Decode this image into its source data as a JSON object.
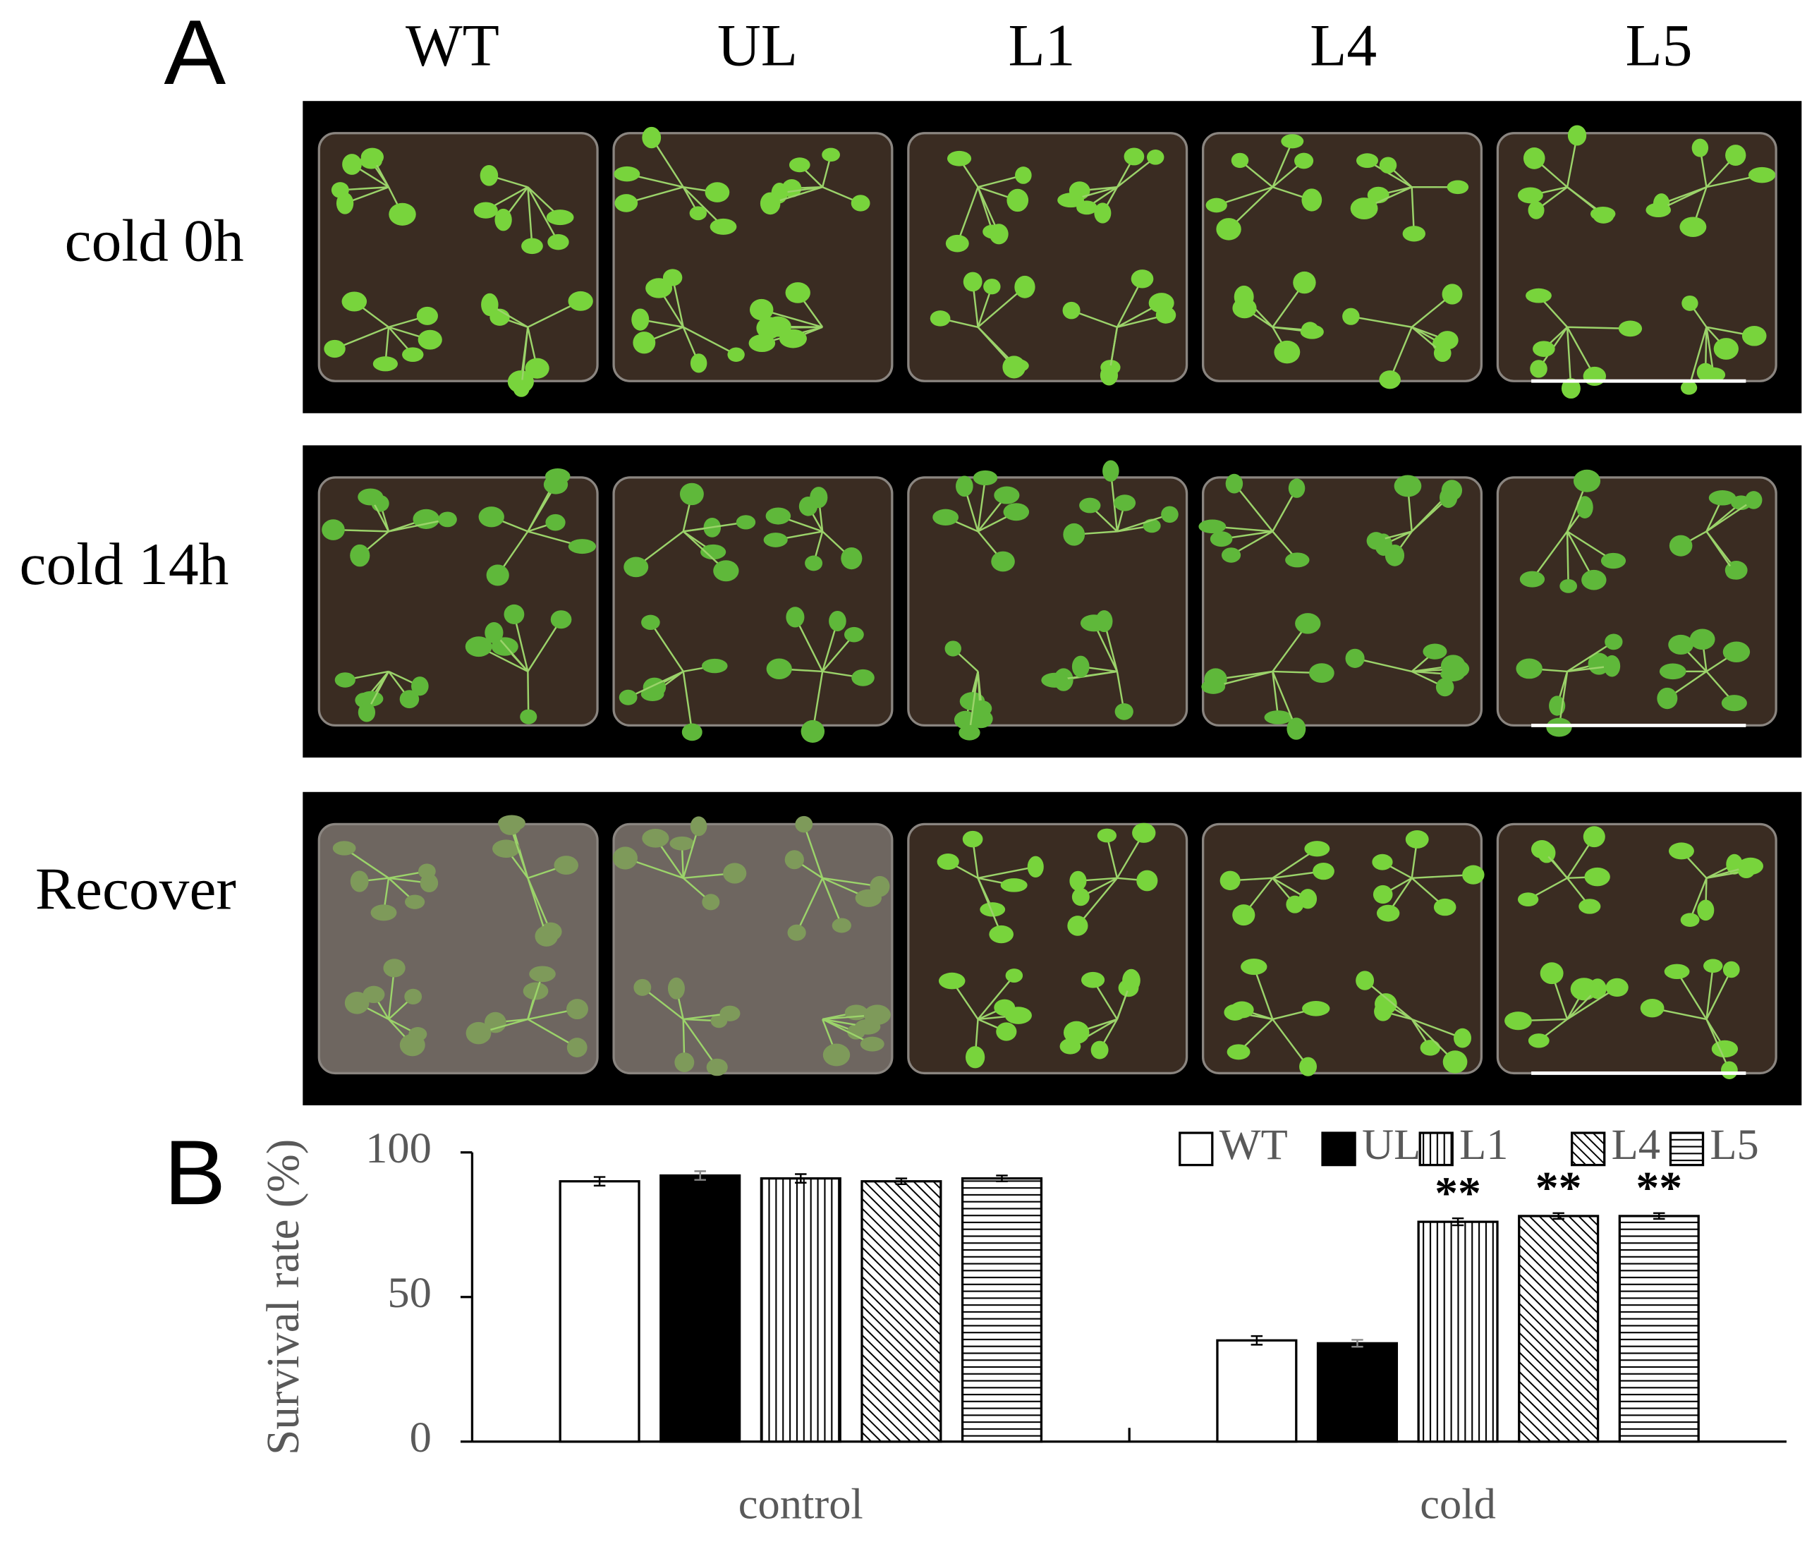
{
  "panel_a": {
    "label": "A",
    "columns": [
      "WT",
      "UL",
      "L1",
      "L4",
      "L5"
    ],
    "rows": [
      "cold 0h",
      "cold 14h",
      "Recover"
    ]
  },
  "chart_data": {
    "type": "bar",
    "panel_label": "B",
    "y_label": "Survival rate (%)",
    "categories": [
      "control",
      "cold"
    ],
    "series": [
      {
        "name": "WT",
        "color": "#ffffff",
        "pattern": null,
        "values": [
          90,
          35
        ],
        "errors": [
          1.5,
          1.5
        ],
        "significance": [
          null,
          null
        ]
      },
      {
        "name": "UL",
        "color": "#000000",
        "pattern": null,
        "values": [
          92,
          34
        ],
        "errors": [
          1.5,
          1.2
        ],
        "significance": [
          null,
          null
        ]
      },
      {
        "name": "L1",
        "color": "#ffffff",
        "pattern": "vertical",
        "values": [
          91,
          76
        ],
        "errors": [
          1.5,
          1.2
        ],
        "significance": [
          null,
          "**"
        ]
      },
      {
        "name": "L4",
        "color": "#ffffff",
        "pattern": "diagonal",
        "values": [
          90,
          78
        ],
        "errors": [
          1,
          1
        ],
        "significance": [
          null,
          "**"
        ]
      },
      {
        "name": "L5",
        "color": "#ffffff",
        "pattern": "horizontal",
        "values": [
          91,
          78
        ],
        "errors": [
          1,
          1
        ],
        "significance": [
          null,
          "**"
        ]
      }
    ],
    "ylim": [
      0,
      100
    ],
    "yticks": [
      0,
      50,
      100
    ],
    "legend": "top-right"
  }
}
